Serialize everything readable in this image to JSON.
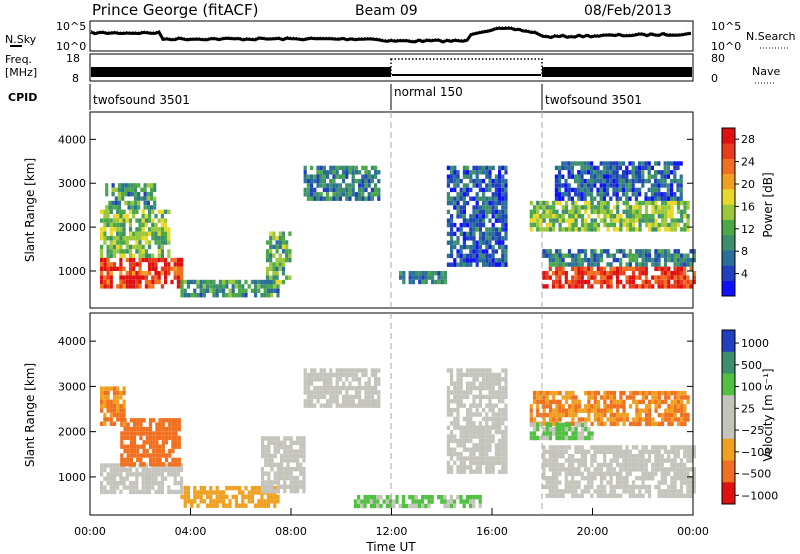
{
  "header": {
    "station": "Prince George (fitACF)",
    "beam": "Beam 09",
    "date": "08/Feb/2013"
  },
  "status_panels": {
    "nsky_label": "N.Sky",
    "nsearch_label": "N.Search",
    "noise_ticks": [
      "10^5",
      "10^0"
    ],
    "freq_label_line1": "Freq.",
    "freq_label_line2": "[MHz]",
    "freq_ticks": [
      "18",
      "8"
    ],
    "nave_label": "Nave",
    "nave_ticks": [
      "80",
      "0"
    ],
    "cpid_label": "CPID",
    "cpid_segments": [
      {
        "label": "twofsound 3501",
        "start_hour": 0,
        "end_hour": 12
      },
      {
        "label": "normal 150",
        "start_hour": 12,
        "end_hour": 18
      },
      {
        "label": "twofsound 3501",
        "start_hour": 18,
        "end_hour": 24
      }
    ]
  },
  "chart_data": [
    {
      "type": "heatmap",
      "panel": "power",
      "ylabel": "Slant Range [km]",
      "xlim": [
        0,
        24
      ],
      "ylim": [
        180,
        4600
      ],
      "yticks": [
        "1000",
        "2000",
        "3000",
        "4000"
      ],
      "colorbar": {
        "label": "Power [dB]",
        "range": [
          0,
          30
        ],
        "ticks": [
          "4",
          "8",
          "12",
          "16",
          "20",
          "24",
          "28"
        ],
        "colors": [
          "#1010ff",
          "#2040c0",
          "#2a6e9a",
          "#3c8e6c",
          "#4aa848",
          "#9ac83a",
          "#e8d82a",
          "#f0a020",
          "#f07020",
          "#e83c1c",
          "#e01010"
        ]
      },
      "regions": [
        {
          "h0": 0.4,
          "h1": 3.6,
          "r0": 650,
          "r1": 1300,
          "power": 26
        },
        {
          "h0": 0.4,
          "h1": 3.2,
          "r0": 1300,
          "r1": 2400,
          "power": 14
        },
        {
          "h0": 0.6,
          "h1": 2.6,
          "r0": 2400,
          "r1": 3000,
          "power": 10
        },
        {
          "h0": 3.6,
          "h1": 7.5,
          "r0": 450,
          "r1": 800,
          "power": 10
        },
        {
          "h0": 7.0,
          "h1": 8.0,
          "r0": 750,
          "r1": 1900,
          "power": 12
        },
        {
          "h0": 8.5,
          "h1": 11.5,
          "r0": 2600,
          "r1": 3400,
          "power": 8
        },
        {
          "h0": 12.3,
          "h1": 14.2,
          "r0": 750,
          "r1": 1000,
          "power": 8
        },
        {
          "h0": 14.2,
          "h1": 16.5,
          "r0": 1100,
          "r1": 3400,
          "power": 6
        },
        {
          "h0": 18.0,
          "h1": 24.0,
          "r0": 650,
          "r1": 1100,
          "power": 27
        },
        {
          "h0": 18.0,
          "h1": 24.0,
          "r0": 1100,
          "r1": 1500,
          "power": 8
        },
        {
          "h0": 17.5,
          "h1": 23.8,
          "r0": 1900,
          "r1": 2600,
          "power": 14
        },
        {
          "h0": 18.5,
          "h1": 23.5,
          "r0": 2600,
          "r1": 3500,
          "power": 6
        }
      ]
    },
    {
      "type": "heatmap",
      "panel": "velocity",
      "ylabel": "Slant Range [km]",
      "xlabel": "Time UT",
      "xlim": [
        0,
        24
      ],
      "ylim": [
        180,
        4600
      ],
      "xticks": [
        "00:00",
        "04:00",
        "08:00",
        "12:00",
        "16:00",
        "20:00",
        "00:00"
      ],
      "yticks": [
        "1000",
        "2000",
        "3000",
        "4000"
      ],
      "colorbar": {
        "label": "Velocity [m s⁻¹]",
        "ticks": [
          "1000",
          "500",
          "100",
          "25",
          "−25",
          "−100",
          "−500",
          "−1000"
        ],
        "colors": [
          "#2040c0",
          "#3c8e6c",
          "#50c040",
          "#c4c4bc",
          "#c4c4bc",
          "#f0a020",
          "#f07020",
          "#e01010"
        ]
      },
      "regions": [
        {
          "h0": 0.4,
          "h1": 3.6,
          "r0": 650,
          "r1": 1300,
          "velocity": 0
        },
        {
          "h0": 1.2,
          "h1": 3.6,
          "r0": 1300,
          "r1": 2300,
          "velocity": -500
        },
        {
          "h0": 0.4,
          "h1": 1.4,
          "r0": 2200,
          "r1": 3000,
          "velocity": -300
        },
        {
          "h0": 3.6,
          "h1": 7.5,
          "r0": 350,
          "r1": 800,
          "velocity": -120
        },
        {
          "h0": 6.8,
          "h1": 8.5,
          "r0": 700,
          "r1": 1900,
          "velocity": 0
        },
        {
          "h0": 8.5,
          "h1": 11.5,
          "r0": 2600,
          "r1": 3400,
          "velocity": 0
        },
        {
          "h0": 10.5,
          "h1": 15.5,
          "r0": 350,
          "r1": 600,
          "velocity": 80
        },
        {
          "h0": 14.2,
          "h1": 16.5,
          "r0": 1100,
          "r1": 3400,
          "velocity": 0
        },
        {
          "h0": 18.0,
          "h1": 24.0,
          "r0": 600,
          "r1": 1700,
          "velocity": 0
        },
        {
          "h0": 17.5,
          "h1": 23.8,
          "r0": 2200,
          "r1": 2900,
          "velocity": -300
        },
        {
          "h0": 17.5,
          "h1": 20.0,
          "r0": 1900,
          "r1": 2200,
          "velocity": 80
        }
      ]
    }
  ]
}
